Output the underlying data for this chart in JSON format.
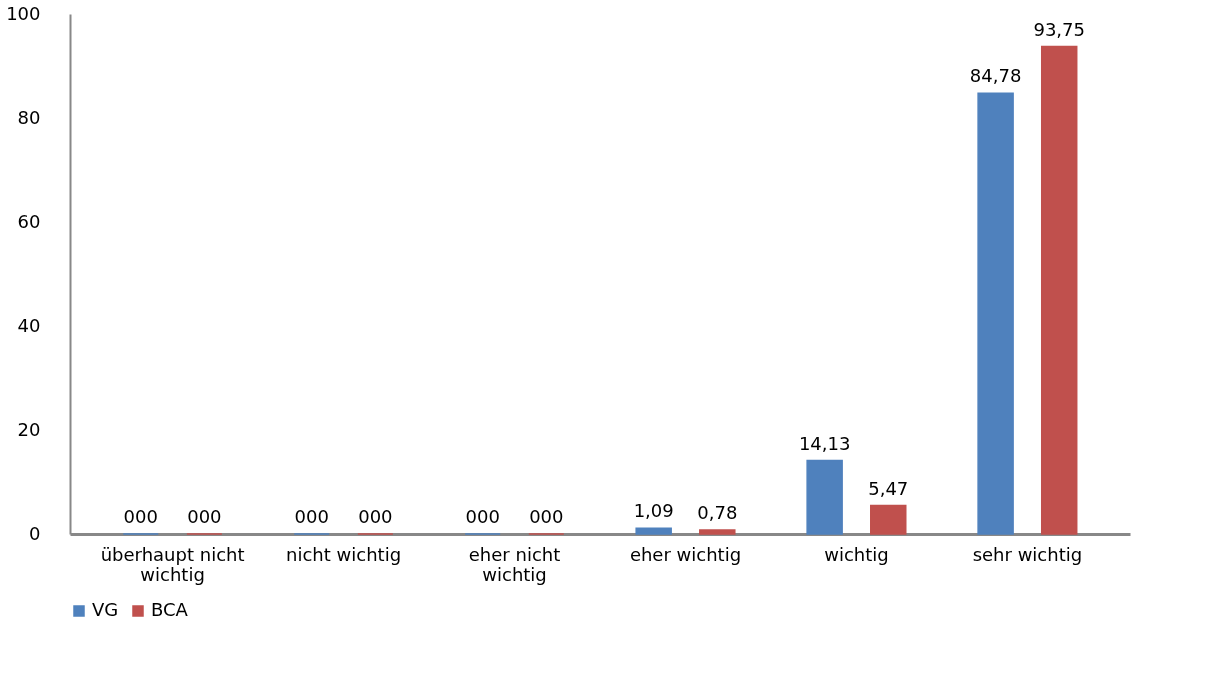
{
  "chart_data": {
    "type": "bar",
    "categories": [
      "überhaupt nicht wichtig",
      "nicht wichtig",
      "eher nicht wichtig",
      "eher wichtig",
      "wichtig",
      "sehr wichtig"
    ],
    "series": [
      {
        "name": "VG",
        "color": "#4f81bd",
        "values": [
          0,
          0,
          0,
          1.09,
          14.13,
          84.78
        ],
        "value_labels": [
          "000",
          "000",
          "000",
          "1,09",
          "14,13",
          "84,78"
        ]
      },
      {
        "name": "BCA",
        "color": "#c0504d",
        "values": [
          0,
          0,
          0,
          0.78,
          5.47,
          93.75
        ],
        "value_labels": [
          "000",
          "000",
          "000",
          "0,78",
          "5,47",
          "93,75"
        ]
      }
    ],
    "ylim": [
      0,
      100
    ],
    "yticks": [
      0,
      20,
      40,
      60,
      80,
      100
    ],
    "grid": false,
    "legend": "bottom"
  }
}
